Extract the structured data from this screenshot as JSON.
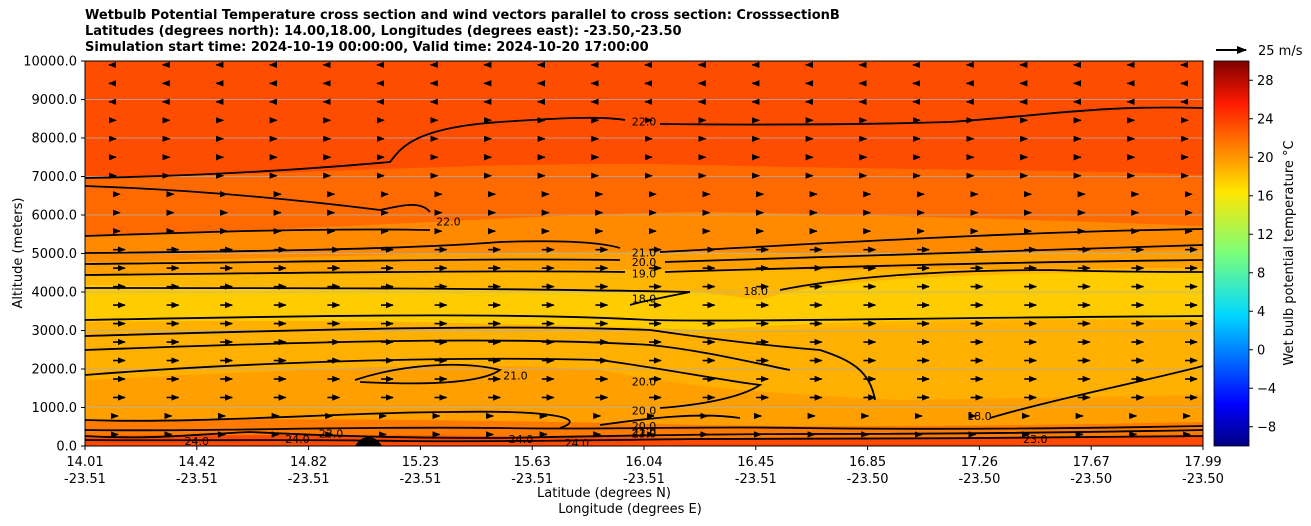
{
  "title_lines": [
    "Wetbulb Potential Temperature cross section and wind vectors parallel to cross section: CrosssectionB",
    "Latitudes (degrees north): 14.00,18.00, Longitudes (degrees east): -23.50,-23.50",
    "Simulation start time: 2024-10-19 00:00:00, Valid time: 2024-10-20 17:00:00"
  ],
  "chart_data": {
    "type": "heatmap",
    "subtype": "cross-section filled contour with contour lines and wind vectors",
    "xlabel": "Latitude (degrees N)",
    "xlabel2": "Longitude (degrees E)",
    "ylabel": "Altitude (meters)",
    "x_ticks": [
      {
        "lat": "14.01",
        "lon": "-23.51"
      },
      {
        "lat": "14.42",
        "lon": "-23.51"
      },
      {
        "lat": "14.82",
        "lon": "-23.51"
      },
      {
        "lat": "15.23",
        "lon": "-23.51"
      },
      {
        "lat": "15.63",
        "lon": "-23.51"
      },
      {
        "lat": "16.04",
        "lon": "-23.51"
      },
      {
        "lat": "16.45",
        "lon": "-23.51"
      },
      {
        "lat": "16.85",
        "lon": "-23.50"
      },
      {
        "lat": "17.26",
        "lon": "-23.50"
      },
      {
        "lat": "17.67",
        "lon": "-23.50"
      },
      {
        "lat": "17.99",
        "lon": "-23.50"
      }
    ],
    "y_ticks": [
      "0.0",
      "1000.0",
      "2000.0",
      "3000.0",
      "4000.0",
      "5000.0",
      "6000.0",
      "7000.0",
      "8000.0",
      "9000.0",
      "10000.0"
    ],
    "ylim": [
      0,
      10000
    ],
    "grid": "horizontal",
    "colorbar": {
      "label": "Wet bulb potential temperature $^\\circ$C",
      "label_display": "Wet bulb potential temperature °C",
      "ticks": [
        "−8",
        "−4",
        "0",
        "4",
        "8",
        "12",
        "16",
        "20",
        "24",
        "28"
      ],
      "range": [
        -10,
        30
      ],
      "colormap": "jet"
    },
    "quiver_key": {
      "label": "25 m/s",
      "speed": 25
    },
    "contour_labels": [
      {
        "text": "22.0",
        "x": 0.5,
        "y": 8400
      },
      {
        "text": "22.0",
        "x": 0.325,
        "y": 5800
      },
      {
        "text": "21.0",
        "x": 0.5,
        "y": 5000
      },
      {
        "text": "20.0",
        "x": 0.5,
        "y": 4750
      },
      {
        "text": "19.0",
        "x": 0.5,
        "y": 4450
      },
      {
        "text": "18.0",
        "x": 0.5,
        "y": 3800
      },
      {
        "text": "18.0",
        "x": 0.6,
        "y": 4000
      },
      {
        "text": "21.0",
        "x": 0.385,
        "y": 1800
      },
      {
        "text": "20.0",
        "x": 0.5,
        "y": 1650
      },
      {
        "text": "20.0",
        "x": 0.5,
        "y": 900
      },
      {
        "text": "20.0",
        "x": 0.5,
        "y": 500
      },
      {
        "text": "21.0",
        "x": 0.5,
        "y": 370
      },
      {
        "text": "23.0",
        "x": 0.5,
        "y": 300
      },
      {
        "text": "24.0",
        "x": 0.1,
        "y": 100
      },
      {
        "text": "24.0",
        "x": 0.19,
        "y": 150
      },
      {
        "text": "23.0",
        "x": 0.22,
        "y": 300
      },
      {
        "text": "24.0",
        "x": 0.39,
        "y": 150
      },
      {
        "text": "24.0",
        "x": 0.44,
        "y": 50
      },
      {
        "text": "18.0",
        "x": 0.8,
        "y": 750
      },
      {
        "text": "23.0",
        "x": 0.85,
        "y": 150
      }
    ],
    "wind_summary": "vectors mostly pointing right (southward-to-northward along section) at 1000-5000 m, weak or left-pointing above 8500 m"
  }
}
